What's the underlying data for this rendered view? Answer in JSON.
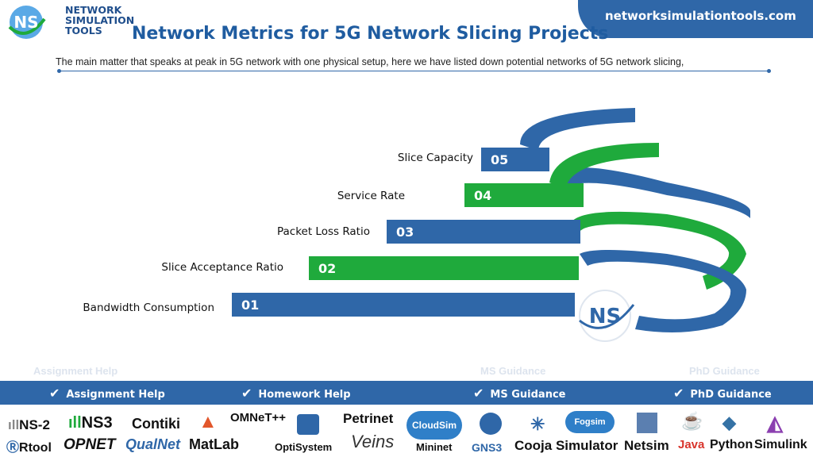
{
  "header": {
    "logo_initials": "NS",
    "logo_lines": [
      "NETWORK",
      "SIMULATION",
      "TOOLS"
    ],
    "site": "networksimulationtools.com",
    "title": "Network Metrics for 5G Network Slicing Projects",
    "subtitle": "The main matter that speaks at peak in 5G network with one physical setup, here we have listed down potential networks of 5G network slicing,"
  },
  "metrics": [
    {
      "number": "05",
      "label": "Slice Capacity",
      "color": "#2f67a8"
    },
    {
      "number": "04",
      "label": "Service Rate",
      "color": "#1faa3c"
    },
    {
      "number": "03",
      "label": "Packet Loss Ratio",
      "color": "#2f67a8"
    },
    {
      "number": "02",
      "label": "Slice Acceptance Ratio",
      "color": "#1faa3c"
    },
    {
      "number": "01",
      "label": "Bandwidth Consumption",
      "color": "#2f67a8"
    }
  ],
  "center_badge": "NS",
  "guidance": [
    {
      "label": "Assignment Help",
      "icon": "check-icon"
    },
    {
      "label": "Homework Help",
      "icon": "check-icon"
    },
    {
      "label": "MS  Guidance",
      "icon": "check-icon"
    },
    {
      "label": "PhD  Guidance",
      "icon": "check-icon"
    }
  ],
  "tools": {
    "ns2": "NS-2",
    "ns3": "NS3",
    "contiki": "Contiki",
    "omnet": "OMNeT++",
    "petrinet": "Petrinet",
    "cloudsim": "CloudSim",
    "fogsim": "Fogsim",
    "rtool": "Rtool",
    "opnet": "OPNET",
    "qualnet": "QualNet",
    "matlab": "MatLab",
    "optisystem": "OptiSystem",
    "veins": "Veins",
    "mininet": "Mininet",
    "gns3": "GNS3",
    "cooja": "Cooja Simulator",
    "netsim": "Netsim",
    "java": "Java",
    "python": "Python",
    "simulink": "Simulink"
  },
  "colors": {
    "primary": "#2f67a8",
    "green": "#1faa3c",
    "title": "#1f5ca0"
  }
}
